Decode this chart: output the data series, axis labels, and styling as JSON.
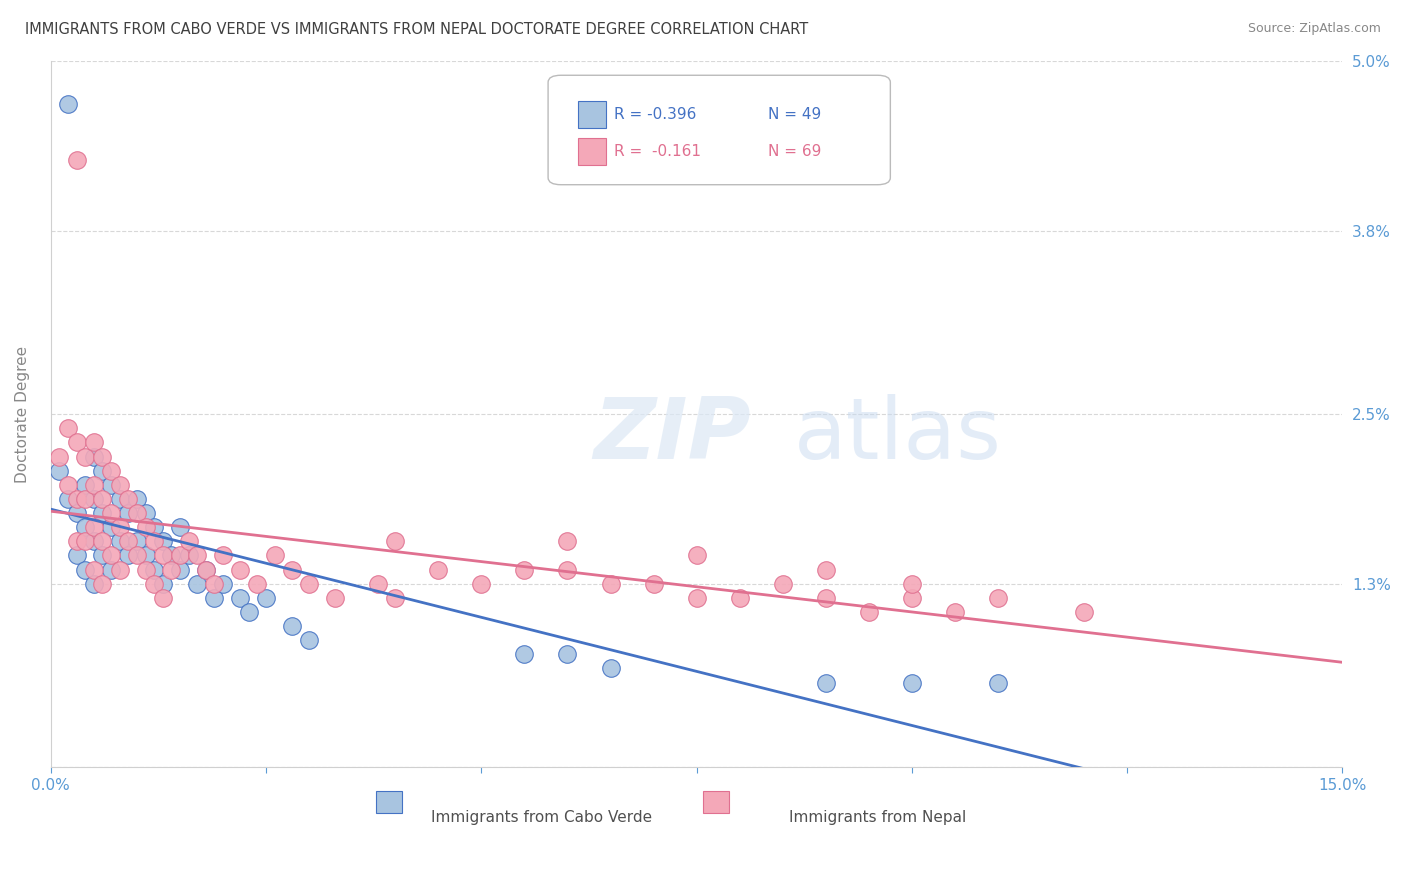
{
  "title": "IMMIGRANTS FROM CABO VERDE VS IMMIGRANTS FROM NEPAL DOCTORATE DEGREE CORRELATION CHART",
  "source": "Source: ZipAtlas.com",
  "ylabel": "Doctorate Degree",
  "xmin": 0.0,
  "xmax": 0.15,
  "ymin": 0.0,
  "ymax": 0.05,
  "color_cabo": "#a8c4e0",
  "color_nepal": "#f4a8b8",
  "color_cabo_line": "#4472c4",
  "color_nepal_line": "#e07090",
  "legend_r_cabo": "R = -0.396",
  "legend_n_cabo": "N = 49",
  "legend_r_nepal": "R =  -0.161",
  "legend_n_nepal": "N = 69",
  "cabo_x": [
    0.001,
    0.002,
    0.003,
    0.003,
    0.004,
    0.004,
    0.004,
    0.005,
    0.005,
    0.005,
    0.005,
    0.006,
    0.006,
    0.006,
    0.007,
    0.007,
    0.007,
    0.008,
    0.008,
    0.009,
    0.009,
    0.01,
    0.01,
    0.011,
    0.011,
    0.012,
    0.012,
    0.013,
    0.013,
    0.014,
    0.015,
    0.015,
    0.016,
    0.017,
    0.018,
    0.019,
    0.02,
    0.022,
    0.023,
    0.025,
    0.028,
    0.03,
    0.055,
    0.06,
    0.065,
    0.09,
    0.1,
    0.11,
    0.002
  ],
  "cabo_y": [
    0.021,
    0.019,
    0.018,
    0.015,
    0.02,
    0.017,
    0.014,
    0.022,
    0.019,
    0.016,
    0.013,
    0.021,
    0.018,
    0.015,
    0.02,
    0.017,
    0.014,
    0.019,
    0.016,
    0.018,
    0.015,
    0.019,
    0.016,
    0.018,
    0.015,
    0.017,
    0.014,
    0.016,
    0.013,
    0.015,
    0.017,
    0.014,
    0.015,
    0.013,
    0.014,
    0.012,
    0.013,
    0.012,
    0.011,
    0.012,
    0.01,
    0.009,
    0.008,
    0.008,
    0.007,
    0.006,
    0.006,
    0.006,
    0.047
  ],
  "nepal_x": [
    0.001,
    0.002,
    0.002,
    0.003,
    0.003,
    0.003,
    0.004,
    0.004,
    0.004,
    0.005,
    0.005,
    0.005,
    0.005,
    0.006,
    0.006,
    0.006,
    0.006,
    0.007,
    0.007,
    0.007,
    0.008,
    0.008,
    0.008,
    0.009,
    0.009,
    0.01,
    0.01,
    0.011,
    0.011,
    0.012,
    0.012,
    0.013,
    0.013,
    0.014,
    0.015,
    0.016,
    0.017,
    0.018,
    0.019,
    0.02,
    0.022,
    0.024,
    0.026,
    0.028,
    0.03,
    0.033,
    0.038,
    0.04,
    0.045,
    0.05,
    0.055,
    0.06,
    0.065,
    0.07,
    0.075,
    0.08,
    0.085,
    0.09,
    0.095,
    0.1,
    0.105,
    0.04,
    0.06,
    0.075,
    0.09,
    0.1,
    0.11,
    0.12,
    0.003
  ],
  "nepal_y": [
    0.022,
    0.024,
    0.02,
    0.023,
    0.019,
    0.016,
    0.022,
    0.019,
    0.016,
    0.023,
    0.02,
    0.017,
    0.014,
    0.022,
    0.019,
    0.016,
    0.013,
    0.021,
    0.018,
    0.015,
    0.02,
    0.017,
    0.014,
    0.019,
    0.016,
    0.018,
    0.015,
    0.017,
    0.014,
    0.016,
    0.013,
    0.015,
    0.012,
    0.014,
    0.015,
    0.016,
    0.015,
    0.014,
    0.013,
    0.015,
    0.014,
    0.013,
    0.015,
    0.014,
    0.013,
    0.012,
    0.013,
    0.012,
    0.014,
    0.013,
    0.014,
    0.014,
    0.013,
    0.013,
    0.012,
    0.012,
    0.013,
    0.012,
    0.011,
    0.012,
    0.011,
    0.016,
    0.016,
    0.015,
    0.014,
    0.013,
    0.012,
    0.011,
    0.043
  ]
}
